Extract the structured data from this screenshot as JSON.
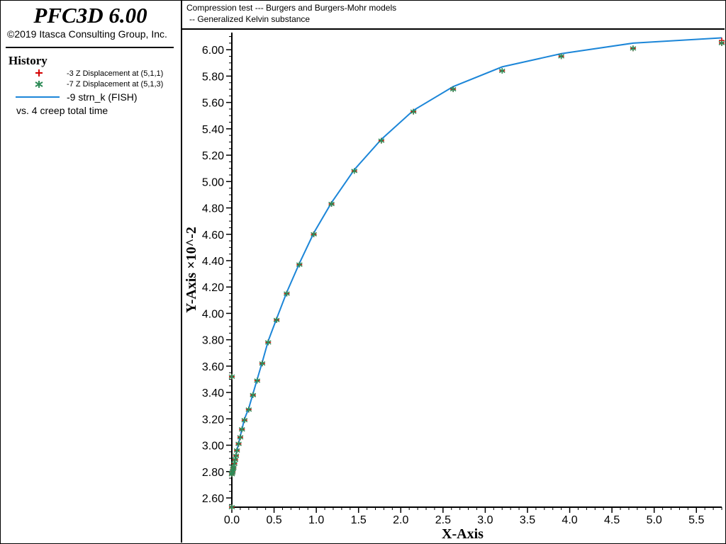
{
  "app": {
    "title": "PFC3D 6.00",
    "copyright": "©2019 Itasca Consulting Group, Inc."
  },
  "legend": {
    "heading": "History",
    "entries": [
      {
        "label": "-3 Z Displacement at (5,1,1)",
        "symbol": "plus",
        "color": "#d40000"
      },
      {
        "label": "-7 Z Displacement at (5,1,3)",
        "symbol": "asterisk",
        "color": "#2e8b57"
      },
      {
        "label": "-9 strn_k (FISH)",
        "symbol": "line",
        "color": "#1c86d8"
      }
    ],
    "vs": "vs. 4 creep total time"
  },
  "header": {
    "title_line1": "Compression test --- Burgers and Burgers-Mohr models",
    "title_line2": "-- Generalized Kelvin substance"
  },
  "chart_data": {
    "type": "line",
    "title": "Compression test --- Burgers and Burgers-Mohr models -- Generalized Kelvin substance",
    "xlabel": "X-Axis",
    "ylabel": "Y-Axis ×10^-2",
    "xlim": [
      0,
      5.8
    ],
    "ylim": [
      2.53,
      6.13
    ],
    "xticks": [
      0.0,
      0.5,
      1.0,
      1.5,
      2.0,
      2.5,
      3.0,
      3.5,
      4.0,
      4.5,
      5.0,
      5.5
    ],
    "xtick_labels": [
      "0.0",
      "0.5",
      "1.0",
      "1.5",
      "2.0",
      "2.5",
      "3.0",
      "3.5",
      "4.0",
      "4.5",
      "5.0",
      "5.5"
    ],
    "yticks": [
      2.6,
      2.8,
      3.0,
      3.2,
      3.4,
      3.6,
      3.8,
      4.0,
      4.2,
      4.4,
      4.6,
      4.8,
      5.0,
      5.2,
      5.4,
      5.6,
      5.8,
      6.0
    ],
    "ytick_labels": [
      "2.60",
      "2.80",
      "3.00",
      "3.20",
      "3.40",
      "3.60",
      "3.80",
      "4.00",
      "4.20",
      "4.40",
      "4.60",
      "4.80",
      "5.00",
      "5.20",
      "5.40",
      "5.60",
      "5.80",
      "6.00"
    ],
    "grid": false,
    "legend_position": "left-panel",
    "series": [
      {
        "name": "-3 Z Displacement at (5,1,1)",
        "marker": "plus",
        "color": "#d40000",
        "x": [
          0.0,
          0.0,
          0.0,
          0.005,
          0.01,
          0.015,
          0.02,
          0.03,
          0.04,
          0.05,
          0.06,
          0.08,
          0.1,
          0.12,
          0.15,
          0.2,
          0.25,
          0.3,
          0.36,
          0.43,
          0.53,
          0.65,
          0.8,
          0.97,
          1.18,
          1.45,
          1.77,
          2.15,
          2.62,
          3.2,
          3.9,
          4.75,
          5.8
        ],
        "y": [
          2.53,
          3.52,
          2.78,
          2.79,
          2.8,
          2.82,
          2.83,
          2.86,
          2.89,
          2.92,
          2.96,
          3.01,
          3.06,
          3.12,
          3.19,
          3.27,
          3.38,
          3.49,
          3.62,
          3.78,
          3.95,
          4.15,
          4.37,
          4.6,
          4.83,
          5.08,
          5.31,
          5.53,
          5.7,
          5.84,
          5.95,
          6.01,
          6.05
        ],
        "y2": [
          6.07
        ]
      },
      {
        "name": "-7 Z Displacement at (5,1,3)",
        "marker": "asterisk",
        "color": "#2e8b57",
        "x": [
          0.0,
          0.0,
          0.0,
          0.005,
          0.01,
          0.015,
          0.02,
          0.03,
          0.04,
          0.05,
          0.06,
          0.08,
          0.1,
          0.12,
          0.15,
          0.2,
          0.25,
          0.3,
          0.36,
          0.43,
          0.53,
          0.65,
          0.8,
          0.97,
          1.18,
          1.45,
          1.77,
          2.15,
          2.62,
          3.2,
          3.9,
          4.75,
          5.8
        ],
        "y": [
          2.53,
          3.52,
          2.78,
          2.79,
          2.8,
          2.82,
          2.83,
          2.86,
          2.89,
          2.92,
          2.96,
          3.01,
          3.06,
          3.12,
          3.19,
          3.27,
          3.38,
          3.49,
          3.62,
          3.78,
          3.95,
          4.15,
          4.37,
          4.6,
          4.83,
          5.08,
          5.31,
          5.53,
          5.7,
          5.84,
          5.95,
          6.01,
          6.05
        ]
      },
      {
        "name": "-9 strn_k (FISH)",
        "marker": "line",
        "color": "#1c86d8",
        "x": [
          0.0,
          0.02,
          0.05,
          0.1,
          0.15,
          0.2,
          0.25,
          0.3,
          0.36,
          0.43,
          0.53,
          0.65,
          0.8,
          0.97,
          1.18,
          1.45,
          1.77,
          2.15,
          2.62,
          3.2,
          3.9,
          4.75,
          5.8
        ],
        "y": [
          2.78,
          2.84,
          2.93,
          3.07,
          3.2,
          3.28,
          3.39,
          3.5,
          3.63,
          3.79,
          3.96,
          4.16,
          4.38,
          4.61,
          4.84,
          5.09,
          5.32,
          5.54,
          5.72,
          5.87,
          5.97,
          6.05,
          6.09
        ]
      }
    ]
  }
}
